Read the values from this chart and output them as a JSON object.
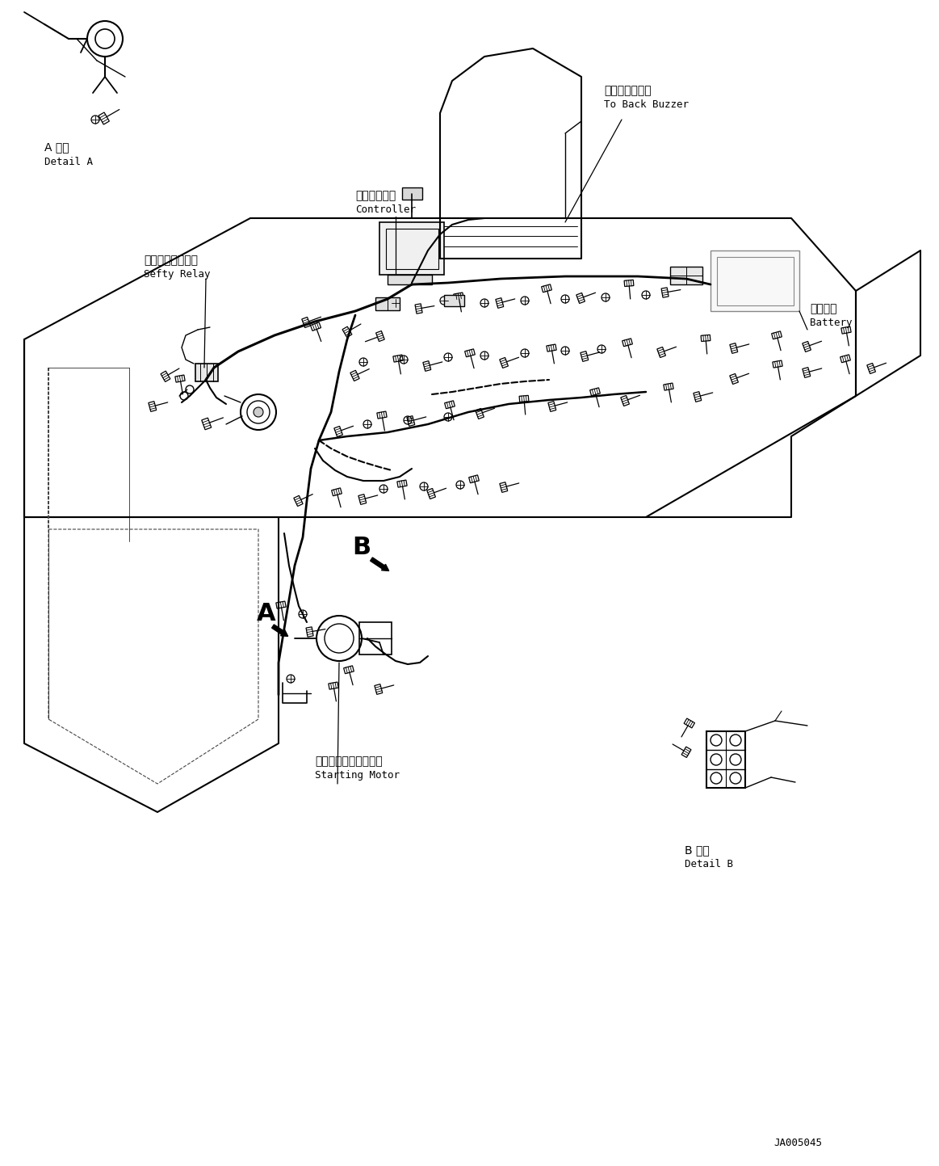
{
  "bg_color": "#ffffff",
  "line_color": "#000000",
  "figsize": [
    11.63,
    14.43
  ],
  "dpi": 100,
  "title_code": "JA005045",
  "labels": {
    "detail_a_jp": "A 詳細",
    "detail_a_en": "Detail A",
    "detail_b_jp": "B 詳細",
    "detail_b_en": "Detail B",
    "to_back_buzzer_jp": "バックブザーへ",
    "to_back_buzzer_en": "To Back Buzzer",
    "controller_jp": "コントローラ",
    "controller_en": "Controller",
    "sefty_relay_jp": "セーフティリレー",
    "sefty_relay_en": "Sefty Relay",
    "battery_jp": "バッテリ",
    "battery_en": "Battery",
    "starting_motor_jp": "スターティングモータ",
    "starting_motor_en": "Starting Motor",
    "label_a": "A",
    "label_b": "B"
  }
}
